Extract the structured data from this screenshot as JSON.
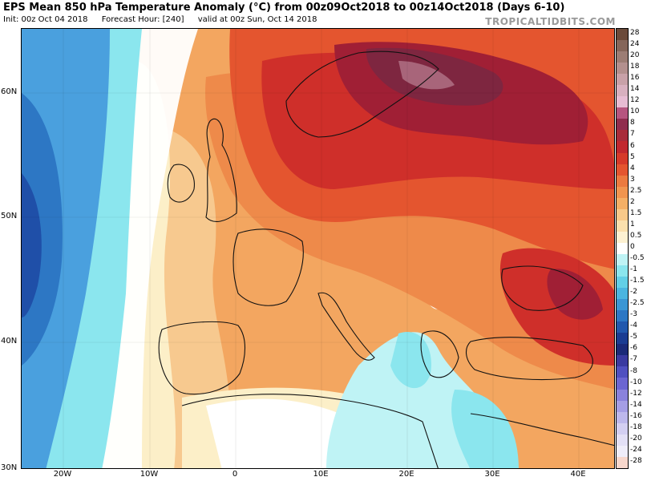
{
  "header": {
    "title": "EPS Mean 850 hPa Temperature Anomaly (°C) from 00z09Oct2018 to 00z14Oct2018 (Days 6-10)",
    "init": "Init: 00z Oct 04 2018",
    "forecast_hour": "Forecast Hour: [240]",
    "valid": "valid at 00z Sun, Oct 14 2018",
    "brand": "TROPICALTIDBITS.COM"
  },
  "axes": {
    "lat_labels": [
      "60N",
      "50N",
      "40N",
      "30N"
    ],
    "lon_labels": [
      "20W",
      "10W",
      "0",
      "10E",
      "20E",
      "30E",
      "40E"
    ]
  },
  "colorbar": {
    "labels": [
      "28",
      "24",
      "20",
      "18",
      "16",
      "14",
      "12",
      "10",
      "8",
      "7",
      "6",
      "5",
      "4",
      "3",
      "2.5",
      "2",
      "1.5",
      "1",
      "0.5",
      "0",
      "-0.5",
      "-1",
      "-1.5",
      "-2",
      "-2.5",
      "-3",
      "-4",
      "-5",
      "-6",
      "-7",
      "-8",
      "-10",
      "-12",
      "-14",
      "-16",
      "-18",
      "-20",
      "-24",
      "-28"
    ],
    "colors": [
      "#6b4a3a",
      "#85665a",
      "#9c7d74",
      "#b3908e",
      "#c8a1a8",
      "#d8b0bf",
      "#e7bcd3",
      "#b6557f",
      "#8f2d4e",
      "#a82c3a",
      "#c1282f",
      "#d63a2a",
      "#e4552f",
      "#ec7a3f",
      "#f1954f",
      "#f5b066",
      "#f8c98a",
      "#fbe0ad",
      "#fdf1d2",
      "#ffffff",
      "#bff3f5",
      "#8be6ee",
      "#62cfe6",
      "#4bb5e0",
      "#3a96d4",
      "#2d77c4",
      "#2258ad",
      "#1b3c92",
      "#1b2a78",
      "#3a3aa0",
      "#5050c0",
      "#6c66d2",
      "#8a82dc",
      "#a59ee5",
      "#bdb8ec",
      "#d3cff2",
      "#e3e0f6",
      "#efedf9",
      "#f7d7cc"
    ]
  },
  "map_features": {
    "colors": {
      "ocean_blue_deep": "#1f4fa8",
      "ocean_blue": "#4aa0de",
      "cyan": "#8fe3ee",
      "white": "#ffffff",
      "light_yellow": "#fcefc8",
      "peach": "#f7c98f",
      "orange": "#ee8a4a",
      "red_orange": "#e4552f",
      "red": "#cf2f2a",
      "dark_red": "#a01f35",
      "maroon": "#7e2640",
      "mauve": "#a8657a"
    }
  }
}
